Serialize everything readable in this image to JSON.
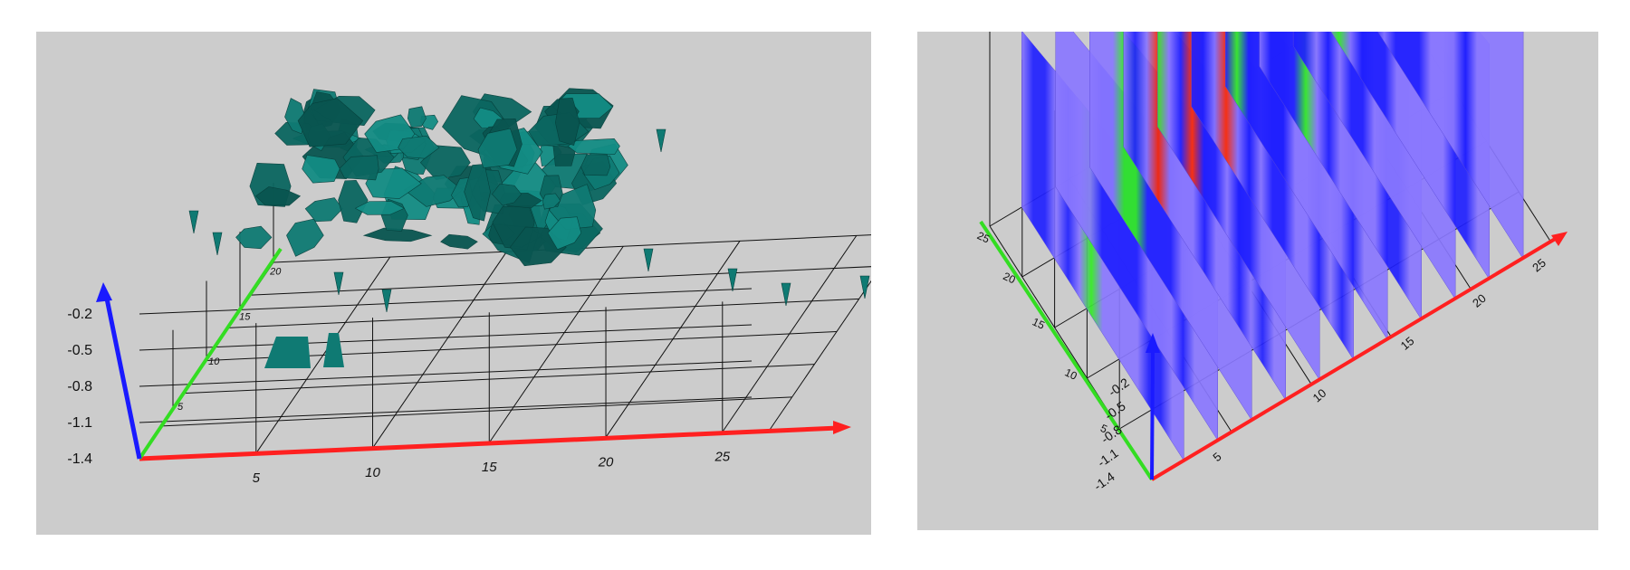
{
  "colors": {
    "background": "#cccccc",
    "x_axis": "#ff2020",
    "y_axis": "#33dd22",
    "z_axis": "#1a1aff",
    "grid": "#111111",
    "isosurface": "#0f7a73",
    "slice_low": "#8a78ff",
    "slice_mid": "#2020ff",
    "slice_high": "#33ee22",
    "slice_peak": "#ff2a00"
  },
  "chart_data": [
    {
      "type": "other",
      "description_kind": "3d-isosurface",
      "x_ticks": [
        "5",
        "10",
        "15",
        "20",
        "25"
      ],
      "y_ticks": [
        "5",
        "10",
        "15",
        "20"
      ],
      "z_ticks": [
        "-0.2",
        "-0.5",
        "-0.8",
        "-1.1",
        "-1.4"
      ],
      "xlim": [
        0,
        27
      ],
      "ylim": [
        0,
        22
      ],
      "zlim": [
        -1.4,
        -0.2
      ],
      "grid": true
    },
    {
      "type": "heatmap",
      "description_kind": "3d-vertical-slices",
      "x_ticks": [
        "5",
        "10",
        "15",
        "20",
        "25"
      ],
      "y_ticks": [
        "5",
        "10",
        "15",
        "20",
        "25"
      ],
      "z_ticks": [
        "-0.2",
        "-0.5",
        "-0.8",
        "-1.1",
        "-1.4"
      ],
      "slice_count": 11,
      "xlim": [
        0,
        27
      ],
      "ylim": [
        0,
        27
      ],
      "zlim": [
        -1.4,
        -0.2
      ],
      "grid": true
    }
  ]
}
